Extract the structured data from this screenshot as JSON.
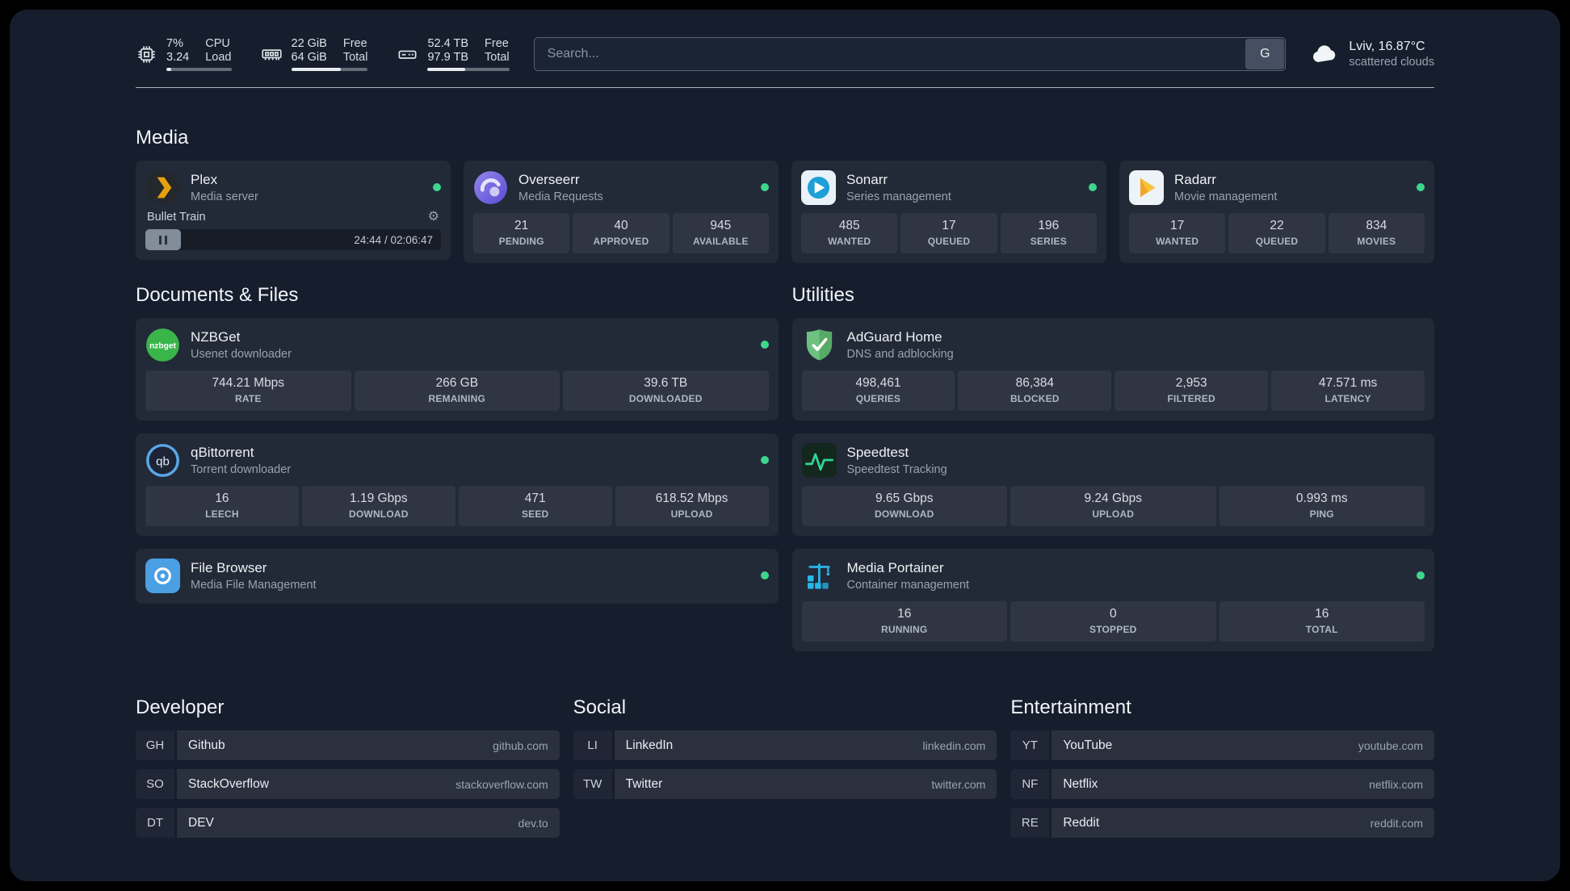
{
  "topbar": {
    "resources": [
      {
        "icon": "cpu-icon",
        "rows": [
          {
            "value": "7%",
            "label": "CPU"
          },
          {
            "value": "3.24",
            "label": "Load"
          }
        ],
        "progress": 7
      },
      {
        "icon": "ram-icon",
        "rows": [
          {
            "value": "22 GiB",
            "label": "Free"
          },
          {
            "value": "64 GiB",
            "label": "Total"
          }
        ],
        "progress": 65
      },
      {
        "icon": "disk-icon",
        "rows": [
          {
            "value": "52.4 TB",
            "label": "Free"
          },
          {
            "value": "97.9 TB",
            "label": "Total"
          }
        ],
        "progress": 46
      }
    ],
    "search": {
      "placeholder": "Search...",
      "provider": "G"
    },
    "weather": {
      "icon": "cloud-icon",
      "location": "Lviv, 16.87°C",
      "condition": "scattered clouds"
    }
  },
  "groups": {
    "media": {
      "title": "Media",
      "services": [
        {
          "name": "Plex",
          "description": "Media server",
          "icon": "plex-icon",
          "online": true,
          "player": {
            "title": "Bullet Train",
            "time": "24:44 / 02:06:47"
          }
        },
        {
          "name": "Overseerr",
          "description": "Media Requests",
          "icon": "overseerr-icon",
          "online": true,
          "stats": [
            {
              "value": "21",
              "label": "PENDING"
            },
            {
              "value": "40",
              "label": "APPROVED"
            },
            {
              "value": "945",
              "label": "AVAILABLE"
            }
          ]
        },
        {
          "name": "Sonarr",
          "description": "Series management",
          "icon": "sonarr-icon",
          "online": true,
          "stats": [
            {
              "value": "485",
              "label": "WANTED"
            },
            {
              "value": "17",
              "label": "QUEUED"
            },
            {
              "value": "196",
              "label": "SERIES"
            }
          ]
        },
        {
          "name": "Radarr",
          "description": "Movie management",
          "icon": "radarr-icon",
          "online": true,
          "stats": [
            {
              "value": "17",
              "label": "WANTED"
            },
            {
              "value": "22",
              "label": "QUEUED"
            },
            {
              "value": "834",
              "label": "MOVIES"
            }
          ]
        }
      ]
    },
    "documents": {
      "title": "Documents & Files",
      "services": [
        {
          "name": "NZBGet",
          "description": "Usenet downloader",
          "icon": "nzbget-icon",
          "online": true,
          "stats": [
            {
              "value": "744.21 Mbps",
              "label": "RATE"
            },
            {
              "value": "266 GB",
              "label": "REMAINING"
            },
            {
              "value": "39.6 TB",
              "label": "DOWNLOADED"
            }
          ]
        },
        {
          "name": "qBittorrent",
          "description": "Torrent downloader",
          "icon": "qbittorrent-icon",
          "online": true,
          "stats": [
            {
              "value": "16",
              "label": "LEECH"
            },
            {
              "value": "1.19 Gbps",
              "label": "DOWNLOAD"
            },
            {
              "value": "471",
              "label": "SEED"
            },
            {
              "value": "618.52 Mbps",
              "label": "UPLOAD"
            }
          ]
        },
        {
          "name": "File Browser",
          "description": "Media File Management",
          "icon": "filebrowser-icon",
          "online": true
        }
      ]
    },
    "utilities": {
      "title": "Utilities",
      "services": [
        {
          "name": "AdGuard Home",
          "description": "DNS and adblocking",
          "icon": "adguard-icon",
          "stats": [
            {
              "value": "498,461",
              "label": "QUERIES"
            },
            {
              "value": "86,384",
              "label": "BLOCKED"
            },
            {
              "value": "2,953",
              "label": "FILTERED"
            },
            {
              "value": "47.571 ms",
              "label": "LATENCY"
            }
          ]
        },
        {
          "name": "Speedtest",
          "description": "Speedtest Tracking",
          "icon": "speedtest-icon",
          "stats": [
            {
              "value": "9.65 Gbps",
              "label": "DOWNLOAD"
            },
            {
              "value": "9.24 Gbps",
              "label": "UPLOAD"
            },
            {
              "value": "0.993 ms",
              "label": "PING"
            }
          ]
        },
        {
          "name": "Media Portainer",
          "description": "Container management",
          "icon": "portainer-icon",
          "online": true,
          "stats": [
            {
              "value": "16",
              "label": "RUNNING"
            },
            {
              "value": "0",
              "label": "STOPPED"
            },
            {
              "value": "16",
              "label": "TOTAL"
            }
          ]
        }
      ]
    }
  },
  "bookmarks": [
    {
      "title": "Developer",
      "items": [
        {
          "abbr": "GH",
          "name": "Github",
          "url": "github.com"
        },
        {
          "abbr": "SO",
          "name": "StackOverflow",
          "url": "stackoverflow.com"
        },
        {
          "abbr": "DT",
          "name": "DEV",
          "url": "dev.to"
        }
      ]
    },
    {
      "title": "Social",
      "items": [
        {
          "abbr": "LI",
          "name": "LinkedIn",
          "url": "linkedin.com"
        },
        {
          "abbr": "TW",
          "name": "Twitter",
          "url": "twitter.com"
        }
      ]
    },
    {
      "title": "Entertainment",
      "items": [
        {
          "abbr": "YT",
          "name": "YouTube",
          "url": "youtube.com"
        },
        {
          "abbr": "NF",
          "name": "Netflix",
          "url": "netflix.com"
        },
        {
          "abbr": "RE",
          "name": "Reddit",
          "url": "reddit.com"
        }
      ]
    }
  ],
  "colors": {
    "background": "#161d2c",
    "accent_green": "#3dd68c"
  }
}
